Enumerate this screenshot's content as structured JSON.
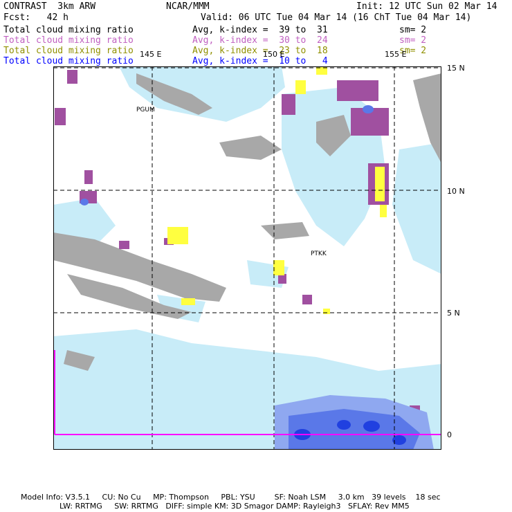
{
  "header": {
    "model": "CONTRAST  3km ARW",
    "center": "NCAR/MMM",
    "init": "Init: 12 UTC Sun 02 Mar 14",
    "fcst": "Fcst:   42 h",
    "valid": "Valid: 06 UTC Tue 04 Mar 14 (16 ChT Tue 04 Mar 14)"
  },
  "legend": [
    {
      "label": "Total cloud mixing ratio",
      "range": "Avg, k-index =  39 to  31",
      "sm": "sm= 2",
      "color": "#000000"
    },
    {
      "label": "Total cloud mixing ratio",
      "range": "Avg, k-index =  30 to  24",
      "sm": "sm= 2",
      "color": "#c060c0"
    },
    {
      "label": "Total cloud mixing ratio",
      "range": "Avg, k-index =  23 to  18",
      "sm": "sm= 2",
      "color": "#909000"
    },
    {
      "label": "Total cloud mixing ratio",
      "range": "Avg, k-index =  10 to   4",
      "sm": "",
      "color": "#0000ff"
    }
  ],
  "axes": {
    "lon_labels": [
      "145 E",
      "150 E",
      "155 E"
    ],
    "lat_labels": [
      "15 N",
      "10 N",
      "5 N",
      "0"
    ]
  },
  "places": [
    "PGUM",
    "PTKK"
  ],
  "footer": {
    "line1": "Model Info: V3.5.1     CU: No Cu     MP: Thompson     PBL: YSU        SF: Noah LSM     3.0 km   39 levels    18 sec",
    "line2": "                LW: RRTMG     SW: RRTMG   DIFF: simple KM: 3D Smagor DAMP: Rayleigh3   SFLAY: Rev MM5"
  },
  "colors": {
    "grey_cloud": "#a8a8a8",
    "cyan_cloud": "#c8ecf8",
    "purple_cloud": "#a050a0",
    "yellow_cloud": "#ffff40",
    "blue_cloud": "#3050e0",
    "boundary": "#ff00ff"
  }
}
